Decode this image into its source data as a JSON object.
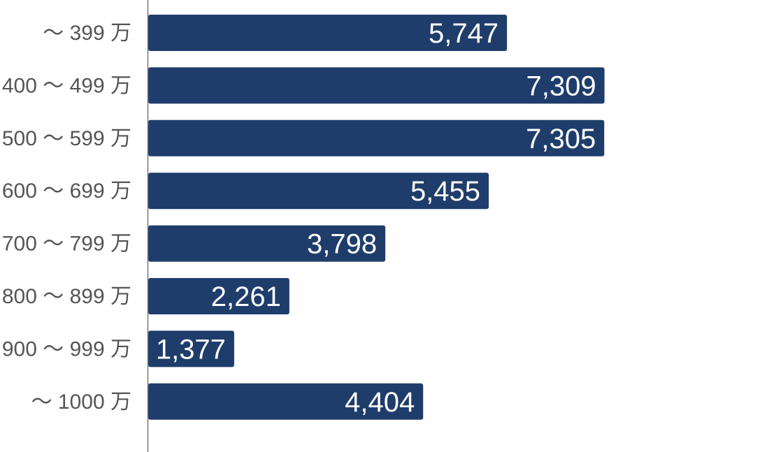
{
  "chart_data": {
    "type": "bar",
    "orientation": "horizontal",
    "categories": [
      "〜 399 万",
      "400 〜 499 万",
      "500 〜 599 万",
      "600 〜 699 万",
      "700 〜 799 万",
      "800 〜 899 万",
      "900 〜 999 万",
      "〜 1000 万"
    ],
    "values": [
      5747,
      7309,
      7305,
      5455,
      3798,
      2261,
      1377,
      4404
    ],
    "value_labels": [
      "5,747",
      "7,309",
      "7,305",
      "5,455",
      "3,798",
      "2,261",
      "1,377",
      "4,404"
    ],
    "xlim": [
      0,
      9800
    ],
    "bar_color": "#1f3d6b",
    "label_color": "#555555",
    "grid": false,
    "legend": "none"
  }
}
